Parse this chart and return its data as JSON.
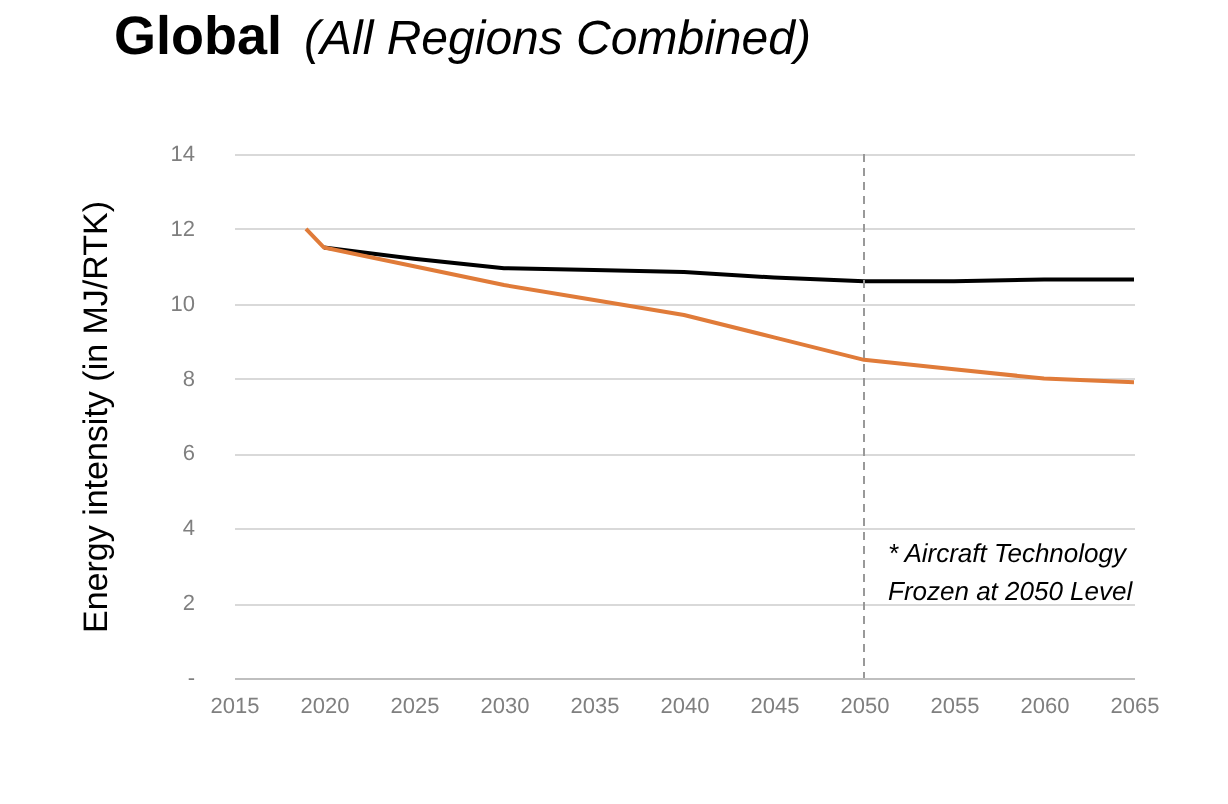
{
  "chart_data": {
    "type": "line",
    "title": "Global",
    "subtitle": "(All Regions Combined)",
    "ylabel": "Energy intensity (in MJ/RTK)",
    "xlim": [
      2015,
      2065
    ],
    "xticks": [
      2015,
      2020,
      2025,
      2030,
      2035,
      2040,
      2045,
      2050,
      2055,
      2060,
      2065
    ],
    "ylim": [
      0,
      14
    ],
    "yticks": [
      {
        "value": 0,
        "label": "-"
      },
      2,
      4,
      6,
      8,
      10,
      12,
      14
    ],
    "grid": "y",
    "marker": "none",
    "line_style": "solid",
    "series": [
      {
        "color": "#000000",
        "x": [
          2020,
          2025,
          2030,
          2035,
          2040,
          2045,
          2050,
          2055,
          2060,
          2065
        ],
        "values": [
          11.5,
          11.2,
          10.95,
          10.9,
          10.85,
          10.7,
          10.6,
          10.6,
          10.65,
          10.65
        ]
      },
      {
        "color": "#e07b39",
        "x": [
          2019,
          2020,
          2025,
          2030,
          2035,
          2040,
          2045,
          2050,
          2055,
          2060,
          2065
        ],
        "values": [
          12,
          11.5,
          11.0,
          10.5,
          10.1,
          9.7,
          9.1,
          8.5,
          8.25,
          8.0,
          7.9
        ]
      }
    ],
    "ref_lines": [
      {
        "axis": "x",
        "value": 2050,
        "color": "#999999",
        "line_style": "dashed"
      }
    ],
    "annotations": [
      "* Aircraft Technology\nFrozen at 2050 Level"
    ]
  }
}
